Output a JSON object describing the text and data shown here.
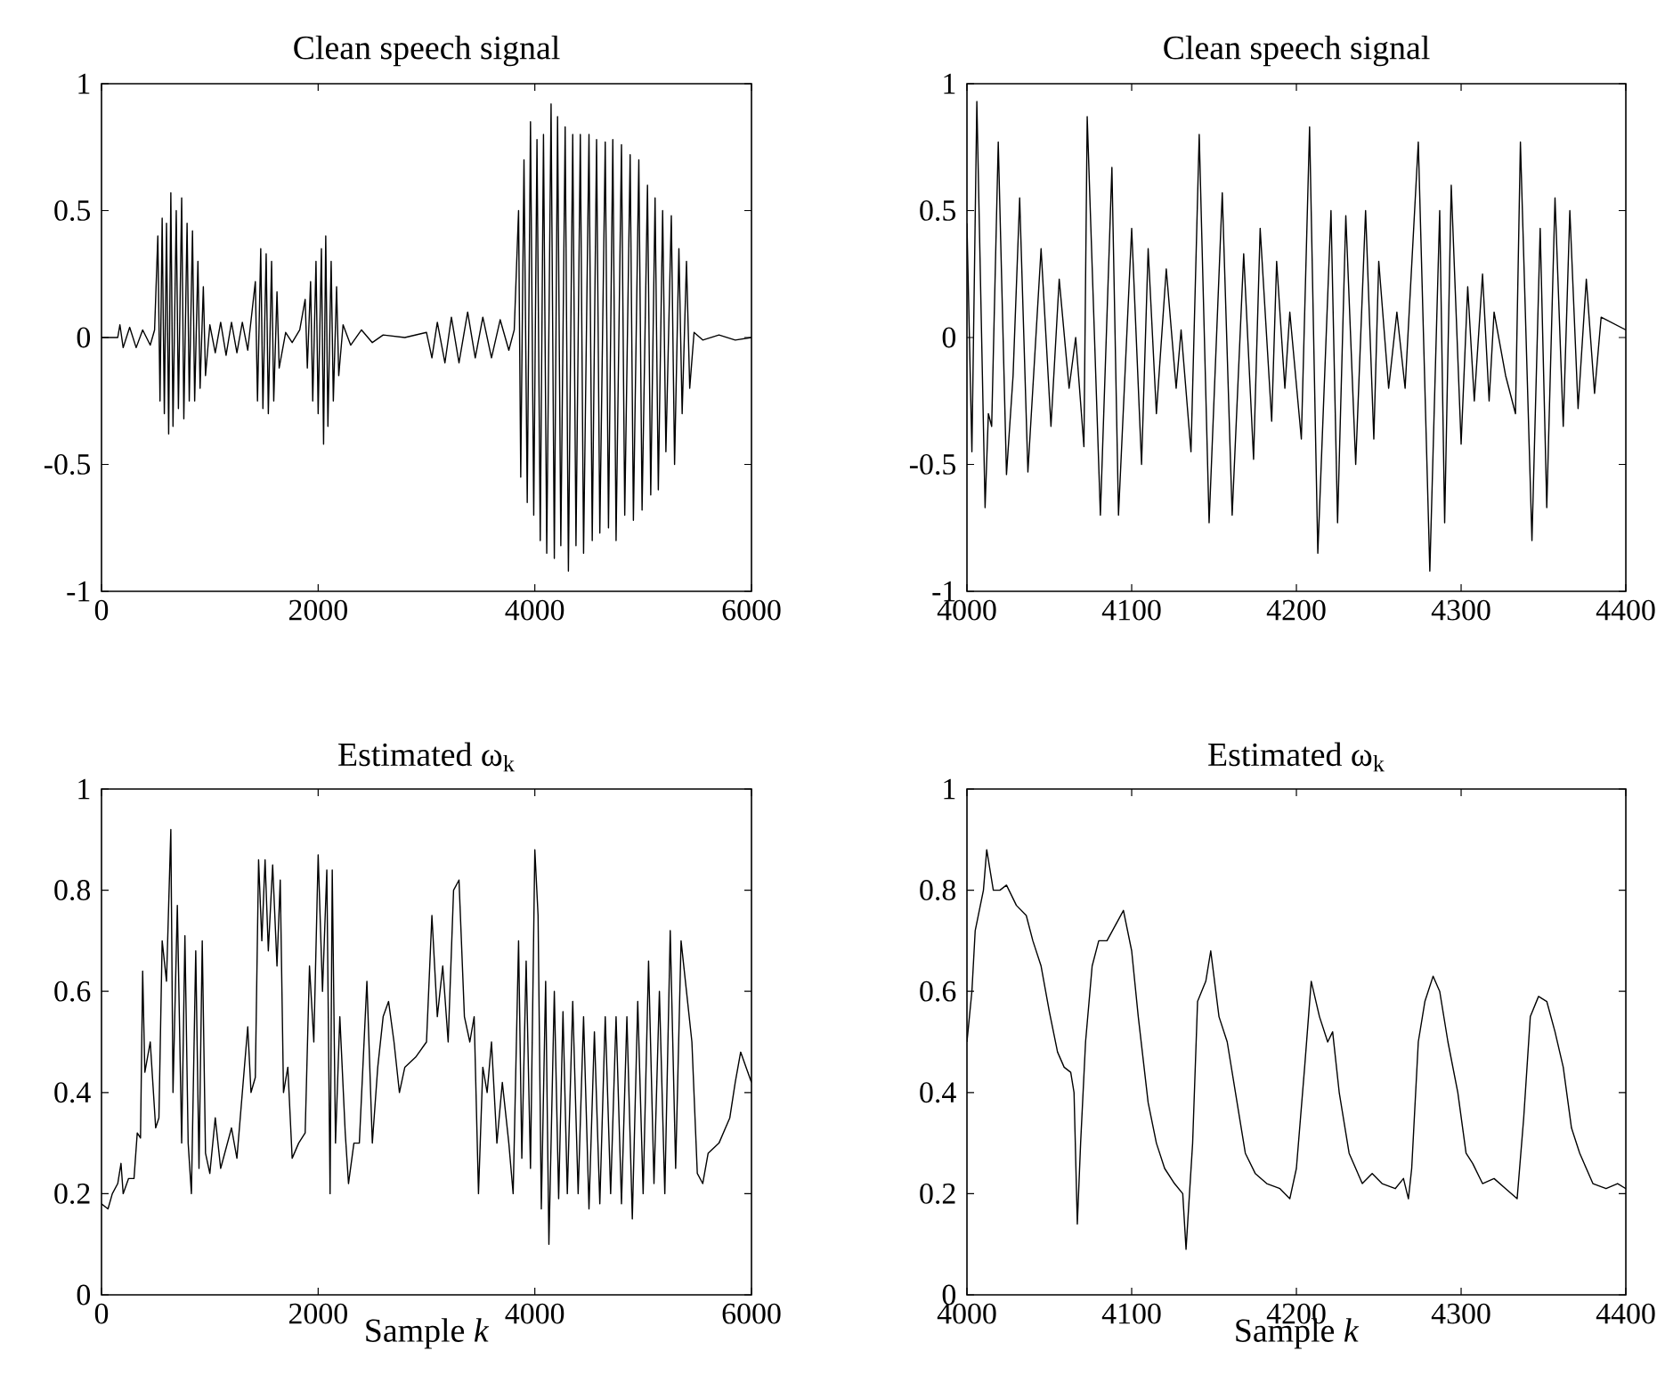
{
  "chart_data": [
    {
      "type": "line",
      "title": "Clean speech signal",
      "xlim": [
        0,
        6000
      ],
      "ylim": [
        -1,
        1
      ],
      "xticks": [
        0,
        2000,
        4000,
        6000
      ],
      "yticks": [
        -1,
        -0.5,
        0,
        0.5,
        1
      ],
      "series": [
        {
          "color": "#000000",
          "x": [
            0,
            150,
            170,
            200,
            260,
            320,
            380,
            450,
            490,
            520,
            540,
            560,
            580,
            600,
            620,
            640,
            660,
            690,
            710,
            740,
            760,
            790,
            810,
            840,
            860,
            890,
            910,
            940,
            960,
            1000,
            1050,
            1100,
            1150,
            1200,
            1250,
            1300,
            1350,
            1420,
            1440,
            1470,
            1490,
            1520,
            1540,
            1570,
            1590,
            1620,
            1640,
            1700,
            1760,
            1830,
            1880,
            1900,
            1930,
            1950,
            1980,
            2000,
            2030,
            2050,
            2070,
            2090,
            2120,
            2140,
            2170,
            2190,
            2230,
            2300,
            2400,
            2500,
            2600,
            2800,
            3000,
            3050,
            3100,
            3170,
            3230,
            3300,
            3380,
            3450,
            3520,
            3600,
            3680,
            3760,
            3810,
            3850,
            3870,
            3900,
            3930,
            3960,
            3990,
            4020,
            4050,
            4080,
            4110,
            4150,
            4180,
            4210,
            4240,
            4280,
            4310,
            4350,
            4380,
            4420,
            4450,
            4500,
            4530,
            4570,
            4600,
            4650,
            4680,
            4720,
            4750,
            4800,
            4830,
            4880,
            4910,
            4960,
            4990,
            5040,
            5070,
            5110,
            5140,
            5180,
            5210,
            5260,
            5290,
            5330,
            5360,
            5400,
            5430,
            5470,
            5550,
            5700,
            5850,
            6000
          ],
          "values": [
            0,
            0,
            0.05,
            -0.04,
            0.04,
            -0.04,
            0.03,
            -0.03,
            0.03,
            0.4,
            -0.25,
            0.47,
            -0.3,
            0.45,
            -0.38,
            0.57,
            -0.35,
            0.5,
            -0.28,
            0.55,
            -0.32,
            0.45,
            -0.25,
            0.42,
            -0.25,
            0.3,
            -0.2,
            0.2,
            -0.15,
            0.05,
            -0.06,
            0.06,
            -0.07,
            0.06,
            -0.06,
            0.06,
            -0.05,
            0.22,
            -0.25,
            0.35,
            -0.28,
            0.33,
            -0.3,
            0.3,
            -0.25,
            0.18,
            -0.12,
            0.02,
            -0.02,
            0.03,
            0.15,
            -0.12,
            0.22,
            -0.25,
            0.3,
            -0.3,
            0.35,
            -0.42,
            0.4,
            -0.35,
            0.3,
            -0.25,
            0.2,
            -0.15,
            0.05,
            -0.03,
            0.03,
            -0.02,
            0.01,
            0,
            0.02,
            -0.08,
            0.06,
            -0.1,
            0.08,
            -0.1,
            0.1,
            -0.08,
            0.08,
            -0.08,
            0.07,
            -0.05,
            0.03,
            0.5,
            -0.55,
            0.7,
            -0.65,
            0.85,
            -0.7,
            0.78,
            -0.8,
            0.8,
            -0.85,
            0.92,
            -0.87,
            0.87,
            -0.82,
            0.83,
            -0.92,
            0.8,
            -0.82,
            0.8,
            -0.85,
            0.8,
            -0.8,
            0.78,
            -0.77,
            0.77,
            -0.75,
            0.78,
            -0.8,
            0.76,
            -0.7,
            0.72,
            -0.72,
            0.7,
            -0.68,
            0.6,
            -0.62,
            0.55,
            -0.6,
            0.5,
            -0.45,
            0.48,
            -0.5,
            0.35,
            -0.3,
            0.3,
            -0.2,
            0.02,
            -0.01,
            0.01,
            -0.01,
            0
          ]
        }
      ]
    },
    {
      "type": "line",
      "title": "Clean speech signal",
      "xlim": [
        4000,
        4400
      ],
      "ylim": [
        -1,
        1
      ],
      "xticks": [
        4000,
        4100,
        4200,
        4300,
        4400
      ],
      "yticks": [
        -1,
        -0.5,
        0,
        0.5,
        1
      ],
      "series": [
        {
          "color": "#000000",
          "x": [
            4000,
            4003,
            4006,
            4011,
            4013,
            4015,
            4019,
            4024,
            4028,
            4032,
            4037,
            4045,
            4051,
            4056,
            4062,
            4066,
            4071,
            4073,
            4081,
            4088,
            4092,
            4100,
            4106,
            4110,
            4115,
            4121,
            4127,
            4130,
            4136,
            4141,
            4147,
            4155,
            4161,
            4168,
            4174,
            4178,
            4185,
            4188,
            4193,
            4196,
            4203,
            4208,
            4213,
            4221,
            4225,
            4230,
            4236,
            4242,
            4247,
            4250,
            4256,
            4261,
            4266,
            4274,
            4281,
            4287,
            4290,
            4294,
            4300,
            4304,
            4308,
            4313,
            4317,
            4320,
            4327,
            4333,
            4336,
            4343,
            4348,
            4352,
            4357,
            4362,
            4366,
            4371,
            4376,
            4381,
            4385,
            4400
          ],
          "values": [
            0.45,
            -0.45,
            0.93,
            -0.67,
            -0.3,
            -0.35,
            0.77,
            -0.54,
            -0.15,
            0.55,
            -0.53,
            0.35,
            -0.35,
            0.23,
            -0.2,
            0,
            -0.43,
            0.87,
            -0.7,
            0.67,
            -0.7,
            0.43,
            -0.5,
            0.35,
            -0.3,
            0.27,
            -0.2,
            0.03,
            -0.45,
            0.8,
            -0.73,
            0.57,
            -0.7,
            0.33,
            -0.48,
            0.43,
            -0.33,
            0.3,
            -0.2,
            0.1,
            -0.4,
            0.83,
            -0.85,
            0.5,
            -0.73,
            0.48,
            -0.5,
            0.5,
            -0.4,
            0.3,
            -0.2,
            0.1,
            -0.2,
            0.77,
            -0.92,
            0.5,
            -0.73,
            0.6,
            -0.42,
            0.2,
            -0.25,
            0.25,
            -0.25,
            0.1,
            -0.15,
            -0.3,
            0.77,
            -0.8,
            0.43,
            -0.67,
            0.55,
            -0.35,
            0.5,
            -0.28,
            0.23,
            -0.22,
            0.08,
            0.03
          ]
        }
      ]
    },
    {
      "type": "line",
      "title": "Estimated ω$_{k}$",
      "xlabel": "Sample *k*",
      "xlim": [
        0,
        6000
      ],
      "ylim": [
        0,
        1
      ],
      "xticks": [
        0,
        2000,
        4000,
        6000
      ],
      "yticks": [
        0,
        0.2,
        0.4,
        0.6,
        0.8,
        1
      ],
      "series": [
        {
          "color": "#000000",
          "x": [
            0,
            60,
            100,
            150,
            180,
            200,
            250,
            300,
            330,
            360,
            380,
            400,
            450,
            500,
            530,
            560,
            600,
            640,
            660,
            700,
            740,
            770,
            800,
            830,
            870,
            900,
            930,
            960,
            1000,
            1050,
            1100,
            1200,
            1250,
            1300,
            1350,
            1380,
            1420,
            1450,
            1480,
            1510,
            1540,
            1580,
            1620,
            1650,
            1680,
            1720,
            1760,
            1820,
            1880,
            1920,
            1960,
            2000,
            2040,
            2080,
            2110,
            2130,
            2160,
            2200,
            2250,
            2280,
            2330,
            2380,
            2450,
            2500,
            2550,
            2600,
            2650,
            2700,
            2750,
            2800,
            2900,
            3000,
            3050,
            3100,
            3150,
            3200,
            3250,
            3300,
            3350,
            3400,
            3440,
            3480,
            3520,
            3560,
            3600,
            3650,
            3700,
            3760,
            3800,
            3850,
            3880,
            3920,
            3960,
            4000,
            4030,
            4060,
            4100,
            4130,
            4180,
            4220,
            4260,
            4300,
            4350,
            4400,
            4450,
            4500,
            4550,
            4600,
            4650,
            4700,
            4750,
            4800,
            4850,
            4900,
            4950,
            5000,
            5050,
            5100,
            5150,
            5200,
            5250,
            5300,
            5350,
            5400,
            5450,
            5500,
            5550,
            5600,
            5700,
            5800,
            5850,
            5900,
            5950,
            6000
          ],
          "values": [
            0.18,
            0.17,
            0.2,
            0.22,
            0.26,
            0.2,
            0.23,
            0.23,
            0.32,
            0.31,
            0.64,
            0.44,
            0.5,
            0.33,
            0.35,
            0.7,
            0.62,
            0.92,
            0.4,
            0.77,
            0.3,
            0.71,
            0.3,
            0.2,
            0.68,
            0.25,
            0.7,
            0.28,
            0.24,
            0.35,
            0.25,
            0.33,
            0.27,
            0.4,
            0.53,
            0.4,
            0.43,
            0.86,
            0.7,
            0.86,
            0.68,
            0.85,
            0.65,
            0.82,
            0.4,
            0.45,
            0.27,
            0.3,
            0.32,
            0.65,
            0.5,
            0.87,
            0.6,
            0.84,
            0.2,
            0.84,
            0.3,
            0.55,
            0.32,
            0.22,
            0.3,
            0.3,
            0.62,
            0.3,
            0.45,
            0.55,
            0.58,
            0.5,
            0.4,
            0.45,
            0.47,
            0.5,
            0.75,
            0.55,
            0.65,
            0.5,
            0.8,
            0.82,
            0.55,
            0.5,
            0.55,
            0.2,
            0.45,
            0.4,
            0.5,
            0.3,
            0.42,
            0.3,
            0.2,
            0.7,
            0.27,
            0.66,
            0.25,
            0.88,
            0.75,
            0.17,
            0.62,
            0.1,
            0.6,
            0.19,
            0.56,
            0.2,
            0.58,
            0.2,
            0.55,
            0.17,
            0.52,
            0.18,
            0.55,
            0.2,
            0.55,
            0.18,
            0.55,
            0.15,
            0.58,
            0.2,
            0.66,
            0.22,
            0.6,
            0.2,
            0.72,
            0.25,
            0.7,
            0.6,
            0.5,
            0.24,
            0.22,
            0.28,
            0.3,
            0.35,
            0.42,
            0.48,
            0.45,
            0.42
          ]
        }
      ]
    },
    {
      "type": "line",
      "title": "Estimated ω$_{k}$",
      "xlabel": "Sample *k*",
      "xlim": [
        4000,
        4400
      ],
      "ylim": [
        0,
        1
      ],
      "xticks": [
        4000,
        4100,
        4200,
        4300,
        4400
      ],
      "yticks": [
        0,
        0.2,
        0.4,
        0.6,
        0.8,
        1
      ],
      "series": [
        {
          "color": "#000000",
          "x": [
            4000,
            4003,
            4005,
            4010,
            4012,
            4016,
            4020,
            4024,
            4030,
            4036,
            4040,
            4045,
            4050,
            4055,
            4059,
            4063,
            4065,
            4067,
            4069,
            4072,
            4076,
            4080,
            4085,
            4090,
            4095,
            4100,
            4104,
            4110,
            4115,
            4120,
            4126,
            4131,
            4133,
            4137,
            4140,
            4145,
            4148,
            4153,
            4158,
            4163,
            4169,
            4175,
            4182,
            4190,
            4196,
            4200,
            4205,
            4209,
            4214,
            4219,
            4222,
            4226,
            4232,
            4240,
            4246,
            4252,
            4260,
            4265,
            4268,
            4270,
            4274,
            4278,
            4283,
            4287,
            4292,
            4298,
            4303,
            4307,
            4313,
            4320,
            4327,
            4334,
            4338,
            4342,
            4347,
            4352,
            4357,
            4362,
            4367,
            4372,
            4380,
            4388,
            4395,
            4400
          ],
          "values": [
            0.5,
            0.6,
            0.72,
            0.8,
            0.88,
            0.8,
            0.8,
            0.81,
            0.77,
            0.75,
            0.7,
            0.65,
            0.56,
            0.48,
            0.45,
            0.44,
            0.4,
            0.14,
            0.3,
            0.5,
            0.65,
            0.7,
            0.7,
            0.73,
            0.76,
            0.68,
            0.55,
            0.38,
            0.3,
            0.25,
            0.22,
            0.2,
            0.09,
            0.3,
            0.58,
            0.62,
            0.68,
            0.55,
            0.5,
            0.4,
            0.28,
            0.24,
            0.22,
            0.21,
            0.19,
            0.25,
            0.45,
            0.62,
            0.55,
            0.5,
            0.52,
            0.4,
            0.28,
            0.22,
            0.24,
            0.22,
            0.21,
            0.23,
            0.19,
            0.25,
            0.5,
            0.58,
            0.63,
            0.6,
            0.5,
            0.4,
            0.28,
            0.26,
            0.22,
            0.23,
            0.21,
            0.19,
            0.35,
            0.55,
            0.59,
            0.58,
            0.52,
            0.45,
            0.33,
            0.28,
            0.22,
            0.21,
            0.22,
            0.21
          ]
        }
      ]
    }
  ]
}
